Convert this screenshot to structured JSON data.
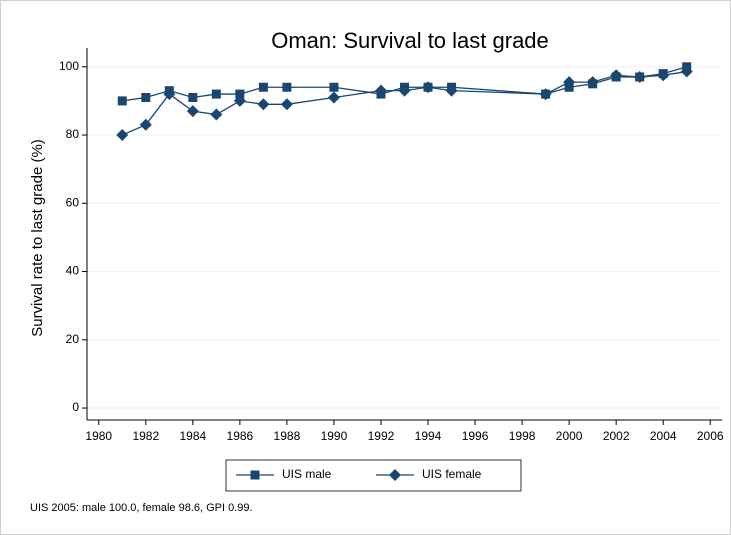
{
  "chart_data": {
    "type": "line",
    "title": "Oman: Survival to last grade",
    "y_label": "Survival rate to last grade (%)",
    "note": "UIS 2005: male 100.0, female 98.6, GPI 0.99.",
    "x": [
      1981,
      1982,
      1983,
      1984,
      1985,
      1986,
      1987,
      1988,
      1990,
      1992,
      1993,
      1994,
      1995,
      1999,
      2000,
      2001,
      2002,
      2003,
      2004,
      2005
    ],
    "series": [
      {
        "name": "UIS male",
        "color": "#1a476f",
        "marker": "square",
        "values": [
          90,
          91,
          93,
          91,
          92,
          92,
          94,
          94,
          94,
          92,
          94,
          94,
          94,
          92,
          94,
          95,
          97,
          97,
          98,
          100
        ]
      },
      {
        "name": "UIS female",
        "color": "#1a476f",
        "marker": "diamond",
        "values": [
          80,
          83,
          92,
          87,
          86,
          90,
          89,
          89,
          91,
          93,
          93,
          94,
          93,
          92,
          95.5,
          95.5,
          97.5,
          97,
          97.5,
          98.6
        ]
      }
    ],
    "xlim": [
      1979.5,
      2006.5
    ],
    "xticks": [
      1980,
      1982,
      1984,
      1986,
      1988,
      1990,
      1992,
      1994,
      1996,
      1998,
      2000,
      2002,
      2004,
      2006
    ],
    "ylim": [
      -3.5,
      105.5
    ],
    "yticks": [
      0,
      20,
      40,
      60,
      80,
      100
    ],
    "grid": true
  }
}
